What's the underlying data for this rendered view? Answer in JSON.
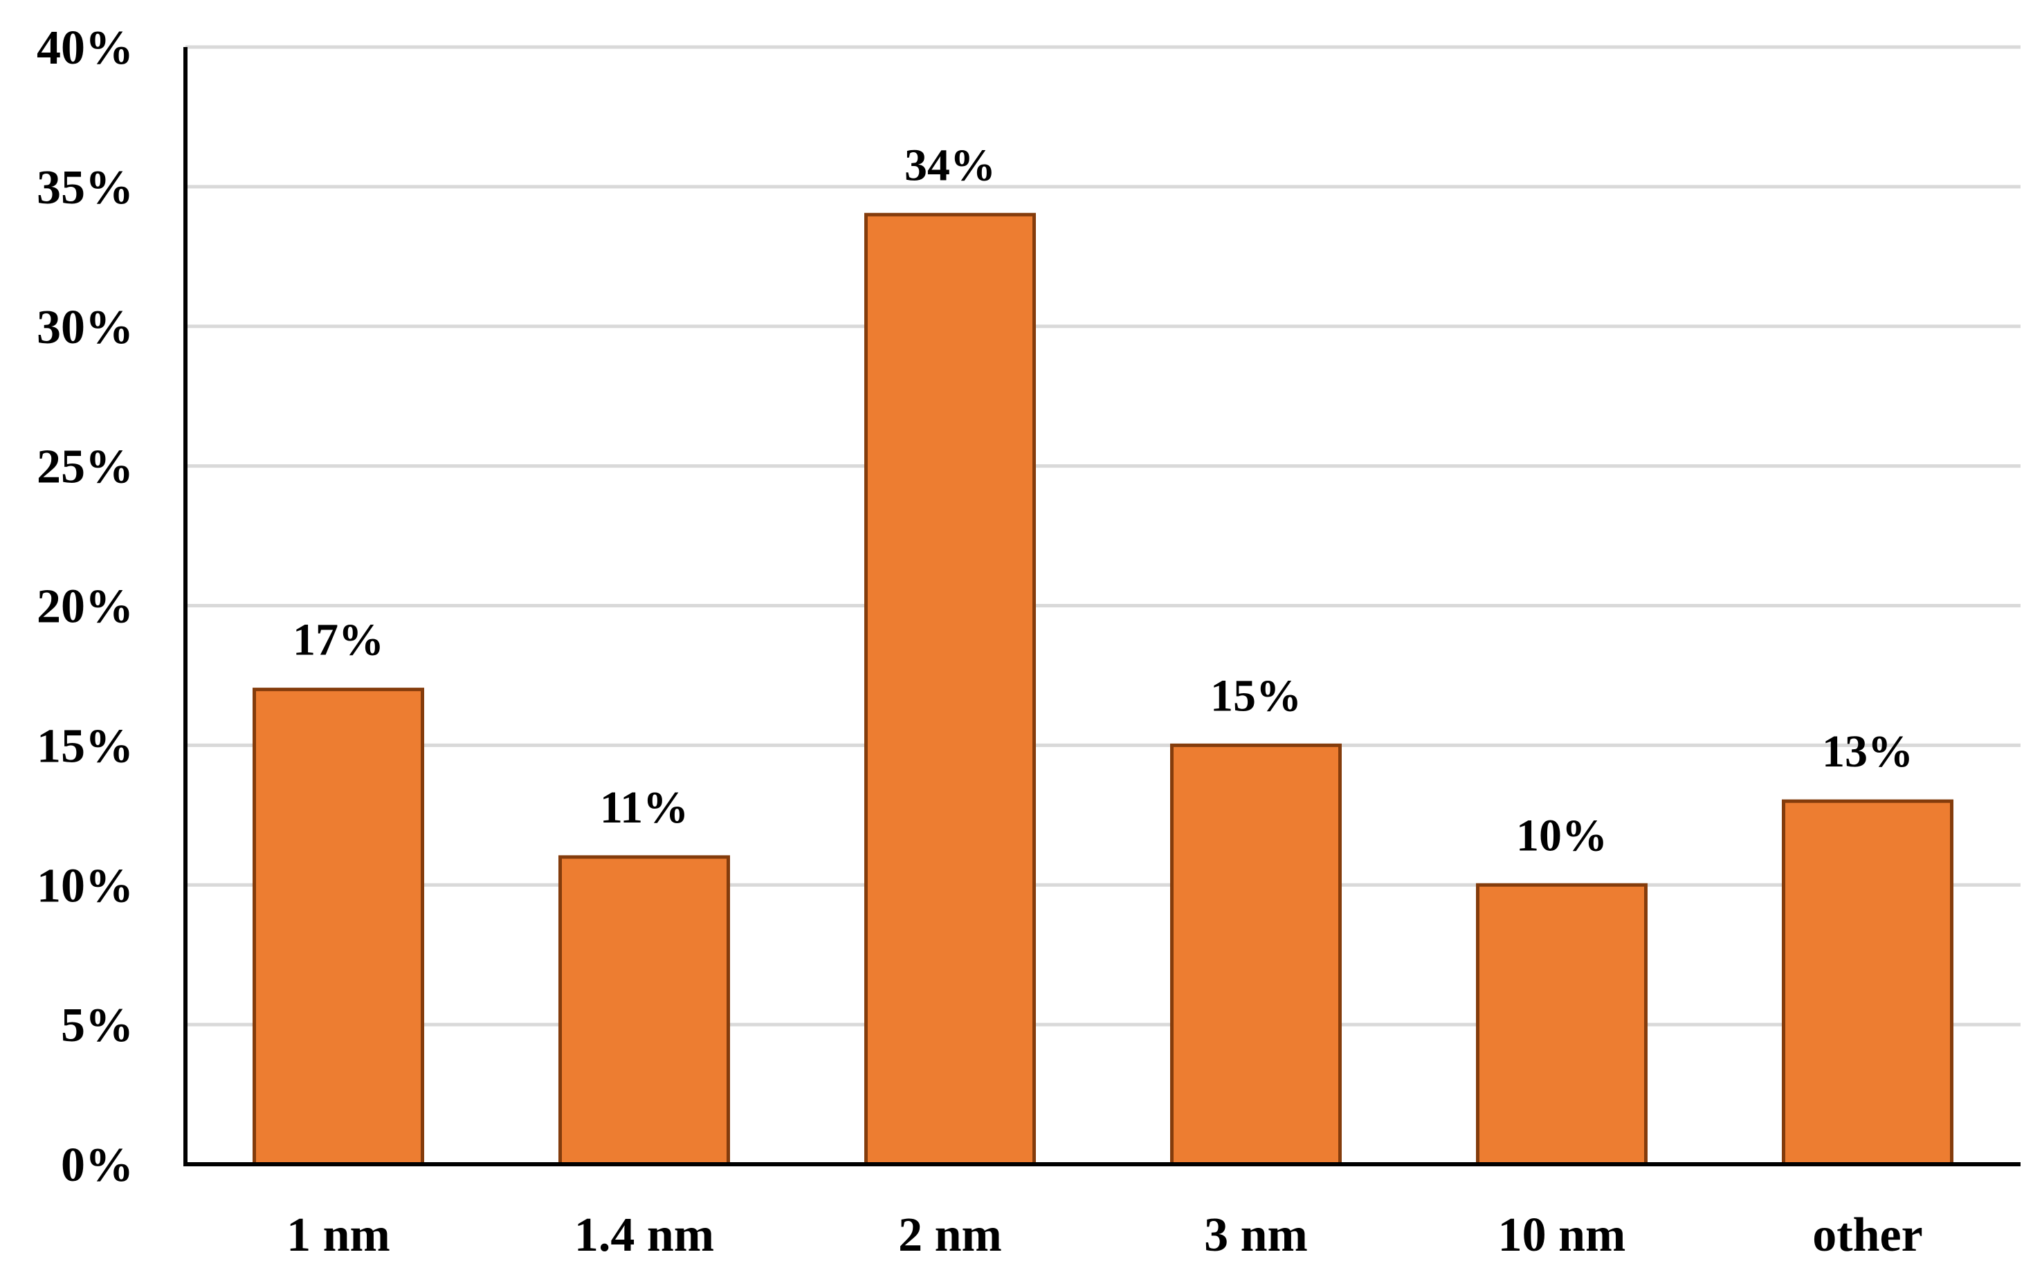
{
  "chart_data": {
    "type": "bar",
    "title": "",
    "xlabel": "",
    "ylabel": "",
    "categories": [
      "1 nm",
      "1.4 nm",
      "2 nm",
      "3 nm",
      "10 nm",
      "other"
    ],
    "values": [
      17,
      11,
      34,
      15,
      10,
      13
    ],
    "data_labels": [
      "17%",
      "11%",
      "34%",
      "15%",
      "10%",
      "13%"
    ],
    "ylim": [
      0,
      40
    ],
    "y_ticks": [
      0,
      5,
      10,
      15,
      20,
      25,
      30,
      35,
      40
    ],
    "y_tick_labels": [
      "0%",
      "5%",
      "10%",
      "15%",
      "20%",
      "25%",
      "30%",
      "35%",
      "40%"
    ],
    "grid": true,
    "legend": "none",
    "colors": {
      "bar_fill": "#ED7D31",
      "bar_edge": "#843C0C",
      "grid": "#D9D9D9",
      "axis": "#000000"
    }
  }
}
